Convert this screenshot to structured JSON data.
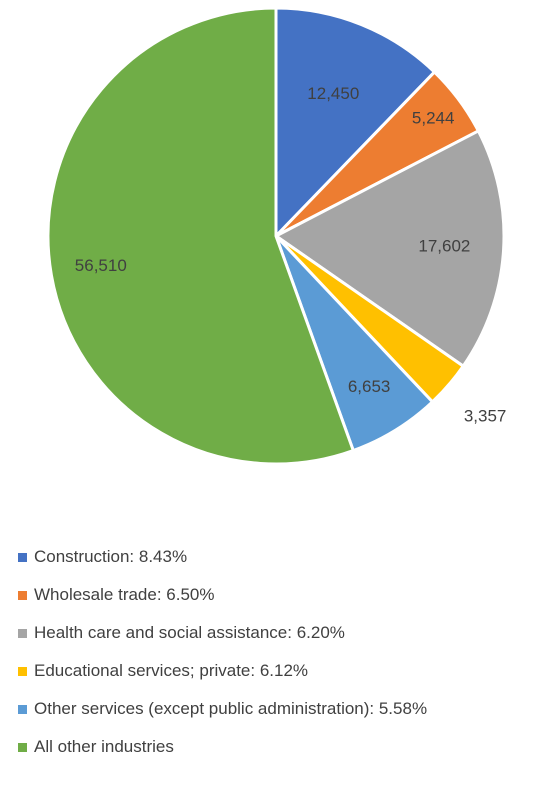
{
  "chart_data": {
    "type": "pie",
    "categories": [
      "Construction: 8.43%",
      "Wholesale trade: 6.50%",
      "Health care and social assistance: 6.20%",
      "Educational services; private: 6.12%",
      "Other services (except public administration): 5.58%",
      "All other industries"
    ],
    "values": [
      12450,
      5244,
      17602,
      3357,
      6653,
      56510
    ],
    "data_labels": [
      "12,450",
      "5,244",
      "17,602",
      "3,357",
      "6,653",
      "56,510"
    ],
    "colors": [
      "#4472C4",
      "#ED7D31",
      "#A5A5A5",
      "#FFC000",
      "#5B9BD5",
      "#70AD47"
    ],
    "legend_position": "bottom",
    "start_angle": "12 o'clock",
    "direction": "clockwise"
  }
}
